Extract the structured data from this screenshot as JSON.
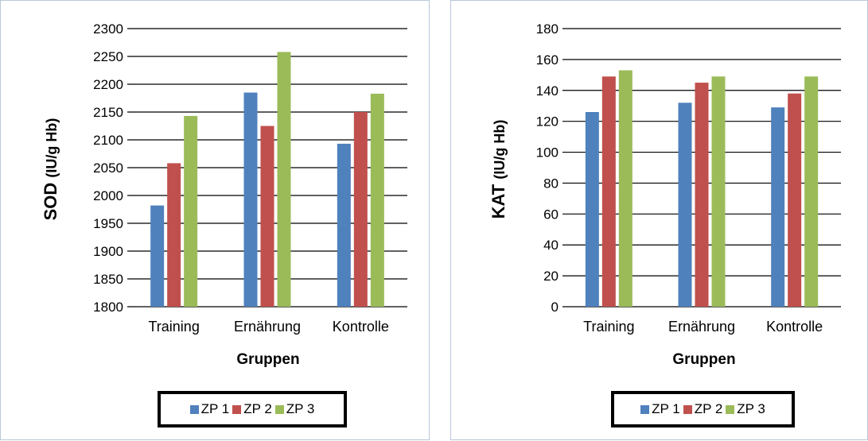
{
  "colors": {
    "zp1": "#4f81bd",
    "zp2": "#c0504d",
    "zp3": "#9bbb59",
    "grid": "#000000"
  },
  "legend": [
    "ZP 1",
    "ZP 2",
    "ZP 3"
  ],
  "chart_data": [
    {
      "type": "bar",
      "categories": [
        "Training",
        "Ernährung",
        "Kontrolle"
      ],
      "series": [
        {
          "name": "ZP 1",
          "values": [
            1982,
            2185,
            2093
          ]
        },
        {
          "name": "ZP 2",
          "values": [
            2058,
            2125,
            2150
          ]
        },
        {
          "name": "ZP 3",
          "values": [
            2143,
            2258,
            2183
          ]
        }
      ],
      "ylabel_main": "SOD",
      "ylabel_unit": "(IU/g Hb)",
      "xlabel": "Gruppen",
      "ylim": [
        1800,
        2300
      ],
      "yticks": [
        1800,
        1850,
        1900,
        1950,
        2000,
        2050,
        2100,
        2150,
        2200,
        2250,
        2300
      ],
      "grid": true,
      "legend_position": "bottom"
    },
    {
      "type": "bar",
      "categories": [
        "Training",
        "Ernährung",
        "Kontrolle"
      ],
      "series": [
        {
          "name": "ZP 1",
          "values": [
            126,
            132,
            129
          ]
        },
        {
          "name": "ZP 2",
          "values": [
            149,
            145,
            138
          ]
        },
        {
          "name": "ZP 3",
          "values": [
            153,
            149,
            149
          ]
        }
      ],
      "ylabel_main": "KAT",
      "ylabel_unit": "(IU/g Hb)",
      "xlabel": "Gruppen",
      "ylim": [
        0,
        180
      ],
      "yticks": [
        0,
        20,
        40,
        60,
        80,
        100,
        120,
        140,
        160,
        180
      ],
      "grid": true,
      "legend_position": "bottom"
    }
  ]
}
